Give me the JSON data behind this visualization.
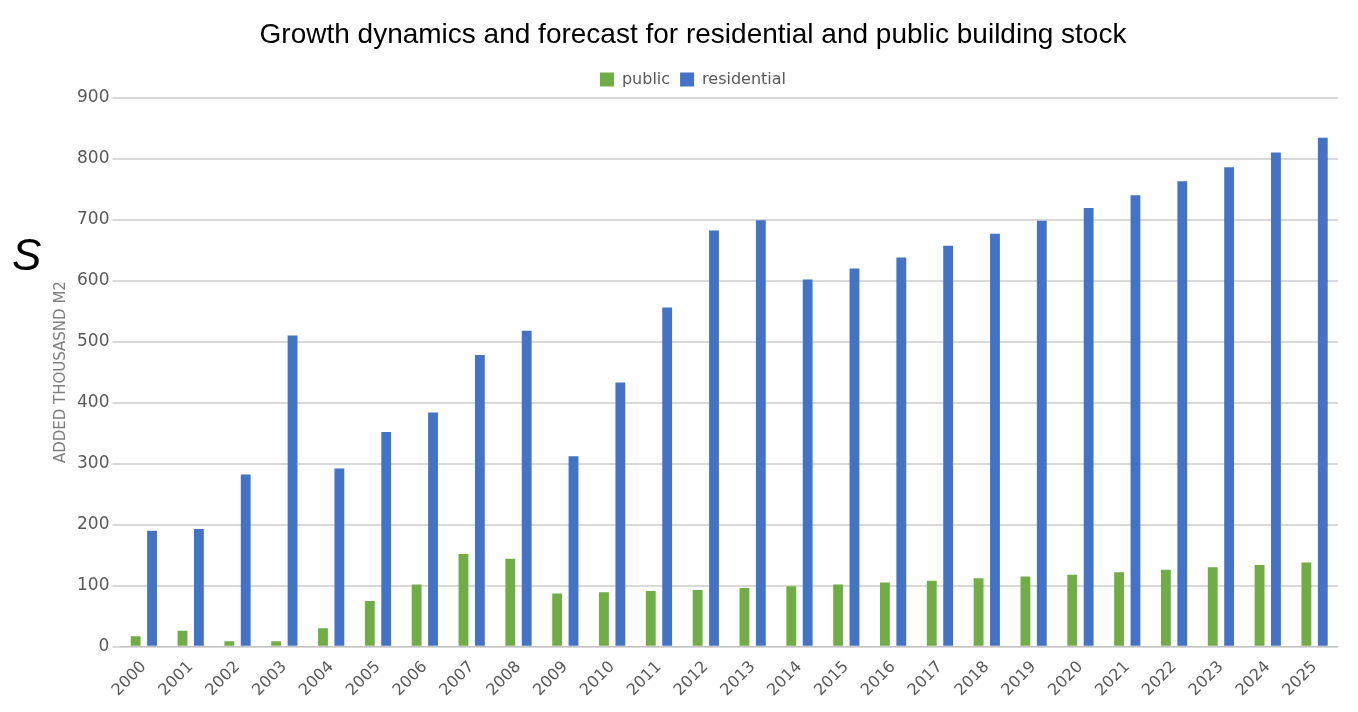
{
  "chart_data": {
    "type": "bar",
    "title": "Growth dynamics and forecast for residential and public building stock",
    "ylabel": "ADDED THOUSASND M2",
    "annotations": [
      "S"
    ],
    "categories": [
      "2000",
      "2001",
      "2002",
      "2003",
      "2004",
      "2005",
      "2006",
      "2007",
      "2008",
      "2009",
      "2010",
      "2011",
      "2012",
      "2013",
      "2014",
      "2015",
      "2016",
      "2017",
      "2018",
      "2019",
      "2020",
      "2021",
      "2022",
      "2023",
      "2024",
      "2025"
    ],
    "series": [
      {
        "name": "public",
        "color": "#70ad47",
        "values": [
          17,
          26,
          9,
          9,
          30,
          75,
          102,
          152,
          144,
          87,
          89,
          91,
          93,
          96,
          99,
          102,
          105,
          108,
          112,
          115,
          118,
          122,
          126,
          130,
          134,
          138
        ]
      },
      {
        "name": "residential",
        "color": "#4472c4",
        "values": [
          190,
          193,
          282,
          510,
          292,
          352,
          384,
          478,
          518,
          312,
          433,
          556,
          682,
          699,
          602,
          620,
          638,
          657,
          677,
          698,
          719,
          740,
          763,
          786,
          810,
          834
        ]
      }
    ],
    "ylim": [
      0,
      900
    ],
    "yticks": [
      0,
      100,
      200,
      300,
      400,
      500,
      600,
      700,
      800,
      900
    ],
    "grid": "y",
    "legend": "top"
  }
}
